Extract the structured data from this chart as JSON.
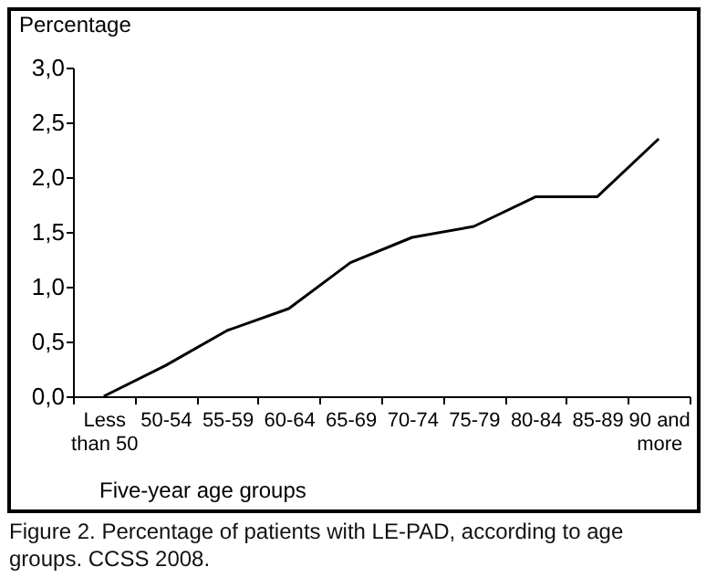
{
  "chart_data": {
    "type": "line",
    "ylabel": "Percentage",
    "xlabel": "Five-year age groups",
    "categories": [
      "Less than 50",
      "50-54",
      "55-59",
      "60-64",
      "65-69",
      "70-74",
      "75-79",
      "80-84",
      "85-89",
      "90 and more"
    ],
    "values": [
      0.0,
      0.28,
      0.6,
      0.8,
      1.22,
      1.45,
      1.55,
      1.82,
      1.82,
      2.35
    ],
    "color": "#000000",
    "ylim": [
      0,
      3
    ],
    "yticks": [
      {
        "value": 0,
        "label": "0,0"
      },
      {
        "value": 0.5,
        "label": "0,5"
      },
      {
        "value": 1,
        "label": "1,0"
      },
      {
        "value": 1.5,
        "label": "1,5"
      },
      {
        "value": 2,
        "label": "2,0"
      },
      {
        "value": 2.5,
        "label": "2,5"
      },
      {
        "value": 3,
        "label": "3,0"
      }
    ],
    "grid": false,
    "marker": "none",
    "line_style": "solid",
    "annotations": [
      "Figure 2. Percentage of patients with LE-PAD, according to age groups. CCSS 2008."
    ]
  }
}
